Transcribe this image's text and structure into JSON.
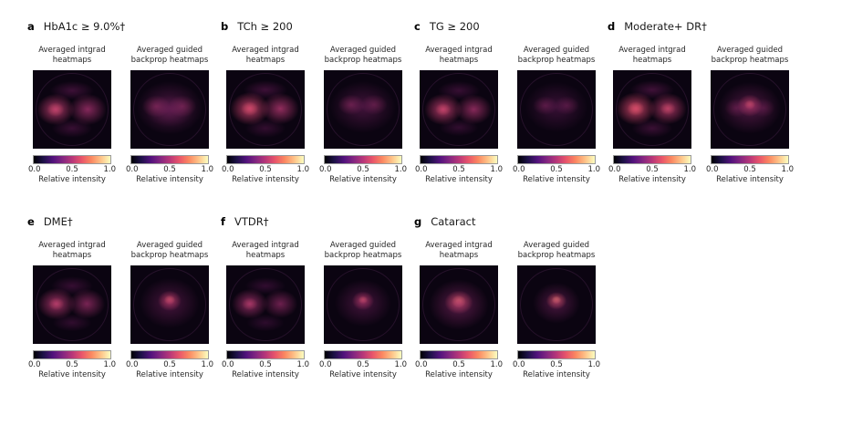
{
  "figure": {
    "captions": {
      "intgrad": [
        "Averaged intgrad",
        "heatmaps"
      ],
      "guided": [
        "Averaged guided",
        "backprop heatmaps"
      ]
    },
    "colorbar": {
      "ticks": [
        "0.0",
        "0.5",
        "1.0"
      ],
      "label": "Relative intensity",
      "gradient": [
        "#000004",
        "#1d1147",
        "#51127c",
        "#822681",
        "#b73779",
        "#e8556b",
        "#fb8761",
        "#fec287",
        "#fcfdbf"
      ]
    },
    "heatmap_background": "#0b0411",
    "rows": [
      {
        "panels": [
          {
            "letter": "a",
            "title": "HbA1c ≥ 9.0%†",
            "maps": [
              {
                "type": "intgrad",
                "blobs": [
                  {
                    "x": 29,
                    "y": 50,
                    "rx": 24,
                    "ry": 20,
                    "c": "rgba(197,62,116,0.85)"
                  },
                  {
                    "x": 70,
                    "y": 50,
                    "rx": 24,
                    "ry": 20,
                    "c": "rgba(183,55,121,0.70)"
                  },
                  {
                    "x": 29,
                    "y": 50,
                    "rx": 11,
                    "ry": 9,
                    "c": "rgba(245,124,92,0.55)"
                  },
                  {
                    "x": 50,
                    "y": 26,
                    "rx": 28,
                    "ry": 12,
                    "c": "rgba(110,28,92,0.50)"
                  },
                  {
                    "x": 50,
                    "y": 74,
                    "rx": 26,
                    "ry": 12,
                    "c": "rgba(110,28,92,0.45)"
                  }
                ]
              },
              {
                "type": "guided",
                "blobs": [
                  {
                    "x": 50,
                    "y": 48,
                    "rx": 42,
                    "ry": 34,
                    "c": "rgba(126,37,104,0.55)"
                  },
                  {
                    "x": 33,
                    "y": 46,
                    "rx": 18,
                    "ry": 14,
                    "c": "rgba(190,60,118,0.50)"
                  },
                  {
                    "x": 66,
                    "y": 46,
                    "rx": 18,
                    "ry": 14,
                    "c": "rgba(190,60,118,0.45)"
                  },
                  {
                    "x": 50,
                    "y": 52,
                    "rx": 30,
                    "ry": 20,
                    "c": "rgba(150,45,110,0.35)"
                  }
                ]
              }
            ]
          },
          {
            "letter": "b",
            "title": "TCh ≥ 200",
            "maps": [
              {
                "type": "intgrad",
                "blobs": [
                  {
                    "x": 30,
                    "y": 49,
                    "rx": 25,
                    "ry": 21,
                    "c": "rgba(208,66,111,0.90)"
                  },
                  {
                    "x": 69,
                    "y": 49,
                    "rx": 24,
                    "ry": 20,
                    "c": "rgba(190,58,118,0.75)"
                  },
                  {
                    "x": 30,
                    "y": 49,
                    "rx": 11,
                    "ry": 9,
                    "c": "rgba(247,131,94,0.60)"
                  },
                  {
                    "x": 50,
                    "y": 25,
                    "rx": 28,
                    "ry": 12,
                    "c": "rgba(110,28,92,0.50)"
                  },
                  {
                    "x": 50,
                    "y": 74,
                    "rx": 26,
                    "ry": 12,
                    "c": "rgba(110,28,92,0.40)"
                  }
                ]
              },
              {
                "type": "guided",
                "blobs": [
                  {
                    "x": 50,
                    "y": 47,
                    "rx": 42,
                    "ry": 33,
                    "c": "rgba(120,34,100,0.50)"
                  },
                  {
                    "x": 35,
                    "y": 44,
                    "rx": 17,
                    "ry": 13,
                    "c": "rgba(185,57,118,0.50)"
                  },
                  {
                    "x": 64,
                    "y": 44,
                    "rx": 17,
                    "ry": 13,
                    "c": "rgba(185,57,118,0.42)"
                  }
                ]
              }
            ]
          },
          {
            "letter": "c",
            "title": "TG ≥ 200",
            "maps": [
              {
                "type": "intgrad",
                "blobs": [
                  {
                    "x": 30,
                    "y": 50,
                    "rx": 24,
                    "ry": 20,
                    "c": "rgba(200,62,114,0.85)"
                  },
                  {
                    "x": 69,
                    "y": 50,
                    "rx": 23,
                    "ry": 19,
                    "c": "rgba(186,56,119,0.70)"
                  },
                  {
                    "x": 30,
                    "y": 50,
                    "rx": 10,
                    "ry": 8,
                    "c": "rgba(246,128,93,0.55)"
                  },
                  {
                    "x": 50,
                    "y": 26,
                    "rx": 27,
                    "ry": 12,
                    "c": "rgba(108,27,92,0.45)"
                  },
                  {
                    "x": 50,
                    "y": 73,
                    "rx": 25,
                    "ry": 11,
                    "c": "rgba(108,27,92,0.40)"
                  }
                ]
              },
              {
                "type": "guided",
                "blobs": [
                  {
                    "x": 50,
                    "y": 47,
                    "rx": 40,
                    "ry": 32,
                    "c": "rgba(112,31,98,0.45)"
                  },
                  {
                    "x": 36,
                    "y": 45,
                    "rx": 16,
                    "ry": 12,
                    "c": "rgba(178,53,119,0.42)"
                  },
                  {
                    "x": 63,
                    "y": 45,
                    "rx": 16,
                    "ry": 12,
                    "c": "rgba(178,53,119,0.38)"
                  }
                ]
              }
            ]
          },
          {
            "letter": "d",
            "title": "Moderate+ DR†",
            "maps": [
              {
                "type": "intgrad",
                "blobs": [
                  {
                    "x": 29,
                    "y": 49,
                    "rx": 25,
                    "ry": 21,
                    "c": "rgba(214,69,108,0.90)"
                  },
                  {
                    "x": 70,
                    "y": 49,
                    "rx": 24,
                    "ry": 20,
                    "c": "rgba(200,62,114,0.80)"
                  },
                  {
                    "x": 29,
                    "y": 49,
                    "rx": 11,
                    "ry": 9,
                    "c": "rgba(250,140,98,0.65)"
                  },
                  {
                    "x": 70,
                    "y": 49,
                    "rx": 10,
                    "ry": 8,
                    "c": "rgba(248,132,95,0.50)"
                  },
                  {
                    "x": 50,
                    "y": 25,
                    "rx": 28,
                    "ry": 12,
                    "c": "rgba(115,30,94,0.50)"
                  },
                  {
                    "x": 50,
                    "y": 74,
                    "rx": 26,
                    "ry": 12,
                    "c": "rgba(115,30,94,0.45)"
                  }
                ]
              },
              {
                "type": "guided",
                "blobs": [
                  {
                    "x": 50,
                    "y": 48,
                    "rx": 40,
                    "ry": 33,
                    "c": "rgba(130,38,104,0.55)"
                  },
                  {
                    "x": 33,
                    "y": 48,
                    "rx": 15,
                    "ry": 12,
                    "c": "rgba(170,50,115,0.40)"
                  },
                  {
                    "x": 67,
                    "y": 48,
                    "rx": 15,
                    "ry": 12,
                    "c": "rgba(170,50,115,0.35)"
                  },
                  {
                    "x": 50,
                    "y": 45,
                    "rx": 16,
                    "ry": 14,
                    "c": "rgba(222,73,104,0.85)"
                  },
                  {
                    "x": 50,
                    "y": 44,
                    "rx": 7,
                    "ry": 6,
                    "c": "rgba(250,140,90,0.95)"
                  }
                ]
              }
            ]
          }
        ]
      },
      {
        "panels": [
          {
            "letter": "e",
            "title": "DME†",
            "maps": [
              {
                "type": "intgrad",
                "blobs": [
                  {
                    "x": 30,
                    "y": 49,
                    "rx": 24,
                    "ry": 20,
                    "c": "rgba(190,58,118,0.80)"
                  },
                  {
                    "x": 69,
                    "y": 49,
                    "rx": 23,
                    "ry": 19,
                    "c": "rgba(178,53,119,0.65)"
                  },
                  {
                    "x": 30,
                    "y": 49,
                    "rx": 10,
                    "ry": 8,
                    "c": "rgba(240,118,90,0.50)"
                  },
                  {
                    "x": 50,
                    "y": 26,
                    "rx": 27,
                    "ry": 12,
                    "c": "rgba(105,26,90,0.45)"
                  },
                  {
                    "x": 50,
                    "y": 73,
                    "rx": 25,
                    "ry": 11,
                    "c": "rgba(105,26,90,0.40)"
                  }
                ]
              },
              {
                "type": "guided",
                "blobs": [
                  {
                    "x": 50,
                    "y": 48,
                    "rx": 38,
                    "ry": 32,
                    "c": "rgba(128,36,103,0.50)"
                  },
                  {
                    "x": 50,
                    "y": 45,
                    "rx": 15,
                    "ry": 13,
                    "c": "rgba(226,76,103,0.85)"
                  },
                  {
                    "x": 50,
                    "y": 44,
                    "rx": 7,
                    "ry": 6,
                    "c": "rgba(252,150,95,0.95)"
                  }
                ]
              }
            ]
          },
          {
            "letter": "f",
            "title": "VTDR†",
            "maps": [
              {
                "type": "intgrad",
                "blobs": [
                  {
                    "x": 30,
                    "y": 49,
                    "rx": 23,
                    "ry": 19,
                    "c": "rgba(182,54,120,0.75)"
                  },
                  {
                    "x": 69,
                    "y": 49,
                    "rx": 22,
                    "ry": 18,
                    "c": "rgba(172,50,118,0.60)"
                  },
                  {
                    "x": 30,
                    "y": 49,
                    "rx": 10,
                    "ry": 8,
                    "c": "rgba(235,110,88,0.45)"
                  },
                  {
                    "x": 50,
                    "y": 26,
                    "rx": 26,
                    "ry": 11,
                    "c": "rgba(102,25,90,0.42)"
                  },
                  {
                    "x": 50,
                    "y": 73,
                    "rx": 24,
                    "ry": 11,
                    "c": "rgba(102,25,90,0.38)"
                  }
                ]
              },
              {
                "type": "guided",
                "blobs": [
                  {
                    "x": 50,
                    "y": 48,
                    "rx": 36,
                    "ry": 30,
                    "c": "rgba(124,35,102,0.50)"
                  },
                  {
                    "x": 50,
                    "y": 45,
                    "rx": 14,
                    "ry": 12,
                    "c": "rgba(220,72,105,0.80)"
                  },
                  {
                    "x": 50,
                    "y": 44,
                    "rx": 6,
                    "ry": 5,
                    "c": "rgba(250,145,92,0.90)"
                  }
                ]
              }
            ]
          },
          {
            "letter": "g",
            "title": "Cataract",
            "maps": [
              {
                "type": "intgrad",
                "blobs": [
                  {
                    "x": 50,
                    "y": 50,
                    "rx": 38,
                    "ry": 32,
                    "c": "rgba(140,41,108,0.60)"
                  },
                  {
                    "x": 50,
                    "y": 47,
                    "rx": 18,
                    "ry": 15,
                    "c": "rgba(235,90,98,0.90)"
                  },
                  {
                    "x": 50,
                    "y": 46,
                    "rx": 9,
                    "ry": 8,
                    "c": "rgba(252,170,100,0.95)"
                  },
                  {
                    "x": 50,
                    "y": 46,
                    "rx": 4,
                    "ry": 4,
                    "c": "rgba(252,235,160,1)"
                  }
                ]
              },
              {
                "type": "guided",
                "blobs": [
                  {
                    "x": 50,
                    "y": 48,
                    "rx": 30,
                    "ry": 26,
                    "c": "rgba(130,38,104,0.55)"
                  },
                  {
                    "x": 50,
                    "y": 45,
                    "rx": 13,
                    "ry": 11,
                    "c": "rgba(240,100,92,0.90)"
                  },
                  {
                    "x": 50,
                    "y": 44,
                    "rx": 6,
                    "ry": 5,
                    "c": "rgba(253,220,130,1)"
                  }
                ]
              }
            ]
          }
        ]
      }
    ]
  }
}
